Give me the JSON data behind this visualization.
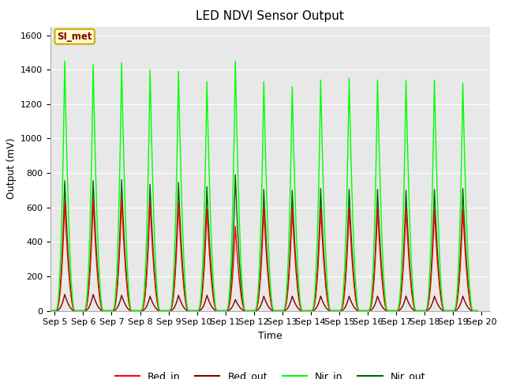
{
  "title": "LED NDVI Sensor Output",
  "xlabel": "Time",
  "ylabel": "Output (mV)",
  "ylim": [
    0,
    1650
  ],
  "x_tick_labels": [
    "Sep 5",
    "Sep 6",
    "Sep 7",
    "Sep 8",
    "Sep 9",
    "Sep 10",
    "Sep 11",
    "Sep 12",
    "Sep 13",
    "Sep 14",
    "Sep 15",
    "Sep 16",
    "Sep 17",
    "Sep 18",
    "Sep 19",
    "Sep 20"
  ],
  "colors": {
    "Red_in": "#ff0000",
    "Red_out": "#800000",
    "Nir_in": "#00ff00",
    "Nir_out": "#006400"
  },
  "bg_color": "#e8e8e8",
  "annotation_text": "SI_met",
  "annotation_bg": "#ffffcc",
  "annotation_border": "#ccaa00",
  "num_cycles": 15,
  "spike_red_in": [
    630,
    640,
    650,
    635,
    630,
    590,
    490,
    595,
    595,
    595,
    595,
    595,
    595,
    585,
    585
  ],
  "spike_red_out": [
    95,
    95,
    90,
    85,
    90,
    90,
    65,
    85,
    85,
    85,
    85,
    85,
    85,
    85,
    85
  ],
  "spike_nir_in": [
    1450,
    1430,
    1440,
    1400,
    1390,
    1330,
    1450,
    1330,
    1300,
    1340,
    1350,
    1340,
    1340,
    1340,
    1320
  ],
  "spike_nir_out": [
    755,
    755,
    760,
    735,
    745,
    720,
    790,
    705,
    700,
    710,
    705,
    705,
    700,
    705,
    710
  ]
}
